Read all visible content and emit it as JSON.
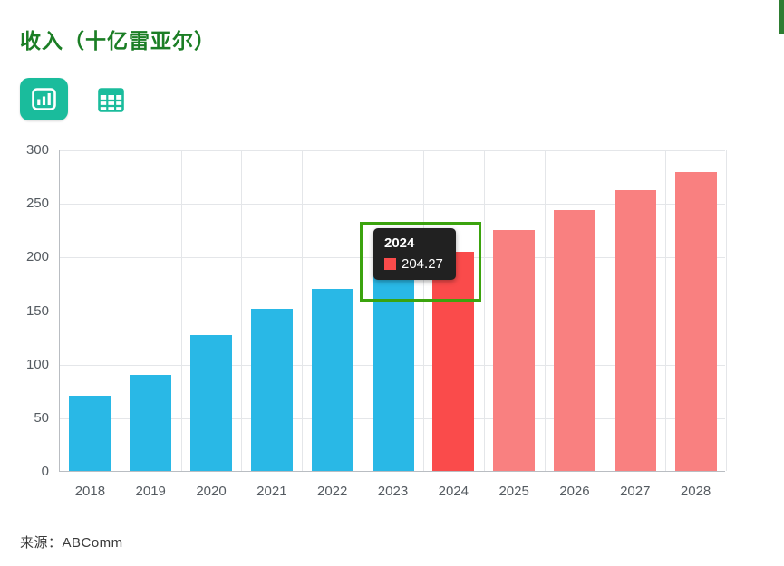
{
  "page": {
    "title": "收入（十亿雷亚尔）",
    "source": "来源：ABComm"
  },
  "toolbar": {
    "chart_view_icon": "bar-chart-icon",
    "table_view_icon": "table-icon"
  },
  "tooltip": {
    "year": "2024",
    "value": "204.27"
  },
  "colors": {
    "title_green": "#1b7e25",
    "toolbar_teal": "#1abc9c",
    "axis_text": "#555b61",
    "grid_line": "#e4e6e9",
    "axis_line": "#b9bdc2",
    "highlight_box": "#3ba30e",
    "tooltip_bg": "#212121",
    "historical_bar": "#29b8e6",
    "forecast_bar": "#f98080",
    "active_bar": "#fa4b4b",
    "edge_accent": "#2e7d32"
  },
  "chart_data": {
    "type": "bar",
    "title": "收入（十亿雷亚尔）",
    "categories": [
      "2018",
      "2019",
      "2020",
      "2021",
      "2022",
      "2023",
      "2024",
      "2025",
      "2026",
      "2027",
      "2028"
    ],
    "values": [
      70,
      90,
      127,
      151,
      170,
      186,
      204.27,
      225,
      243,
      262,
      279
    ],
    "bar_colors": [
      "#29b8e6",
      "#29b8e6",
      "#29b8e6",
      "#29b8e6",
      "#29b8e6",
      "#29b8e6",
      "#fa4b4b",
      "#f98080",
      "#f98080",
      "#f98080",
      "#f98080"
    ],
    "highlighted_category": "2024",
    "highlighted_value": 204.27,
    "xlabel": "",
    "ylabel": "",
    "ylim": [
      0,
      300
    ],
    "yticks": [
      0,
      50,
      100,
      150,
      200,
      250,
      300
    ],
    "grid": true,
    "legend": "none"
  }
}
